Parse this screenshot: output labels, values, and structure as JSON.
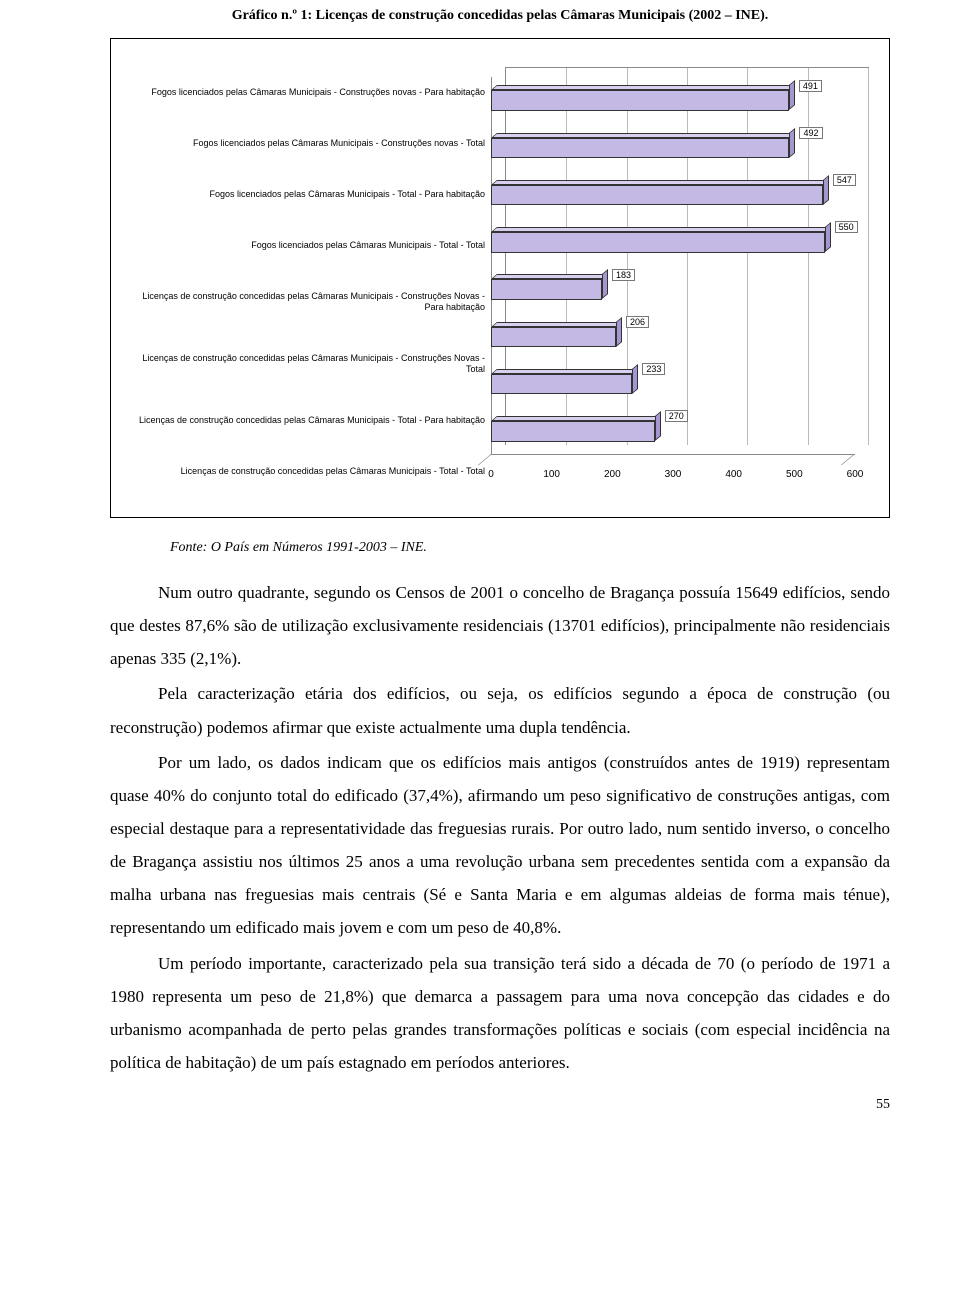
{
  "title": "Gráfico n.º 1: Licenças de construção concedidas pelas Câmaras Municipais (2002 – INE).",
  "chart": {
    "type": "bar-horizontal-3d",
    "x_max": 600,
    "x_ticks": [
      0,
      100,
      200,
      300,
      400,
      500,
      600
    ],
    "bar_fill": "#c4b8e4",
    "bar_top": "#d9d0f0",
    "bar_side": "#a596cf",
    "grid_color": "#bbbbbb",
    "axis_color": "#888888",
    "label_font": "Arial",
    "label_fontsize": 9,
    "tick_fontsize": 10,
    "categories": [
      {
        "label": "Fogos licenciados pelas Câmaras Municipais - Construções novas - Para habitação",
        "value": 491
      },
      {
        "label": "Fogos licenciados pelas Câmaras Municipais - Construções novas - Total",
        "value": 492
      },
      {
        "label": "Fogos licenciados pelas Câmaras Municipais - Total - Para habitação",
        "value": 547
      },
      {
        "label": "Fogos licenciados pelas Câmaras Municipais - Total - Total",
        "value": 550
      },
      {
        "label": "Licenças de construção concedidas pelas Câmaras Municipais - Construções Novas - Para habitação",
        "value": 183
      },
      {
        "label": "Licenças de construção concedidas pelas Câmaras Municipais - Construções Novas - Total",
        "value": 206
      },
      {
        "label": "Licenças de construção concedidas pelas Câmaras Municipais - Total - Para habitação",
        "value": 233
      },
      {
        "label": "Licenças de construção concedidas pelas Câmaras Municipais - Total - Total",
        "value": 270
      }
    ]
  },
  "fonte": "Fonte: O País em Números 1991-2003 – INE.",
  "paragraphs": [
    "Num outro quadrante, segundo os Censos de 2001 o concelho de Bragança possuía 15649 edifícios, sendo que destes 87,6% são de utilização exclusivamente residenciais (13701 edifícios), principalmente não residenciais apenas 335 (2,1%).",
    "Pela caracterização etária dos edifícios, ou seja, os edifícios segundo a época de construção (ou reconstrução) podemos afirmar que existe actualmente uma dupla tendência.",
    "Por um lado, os dados indicam que os edifícios mais antigos (construídos antes de 1919) representam quase 40% do conjunto total do edificado (37,4%), afirmando um peso significativo de construções antigas, com especial destaque para a representatividade das freguesias rurais. Por outro lado, num sentido inverso, o concelho de Bragança assistiu nos últimos 25 anos a uma revolução urbana sem precedentes sentida com a expansão da malha urbana nas freguesias mais centrais (Sé e Santa Maria e em algumas aldeias de forma mais ténue), representando um edificado mais jovem e com um peso de 40,8%.",
    "Um período importante, caracterizado pela sua transição terá sido a década de 70 (o período de 1971 a 1980 representa um peso de 21,8%) que demarca a passagem para uma nova concepção das cidades e do urbanismo acompanhada de perto pelas grandes transformações políticas e sociais (com especial incidência na política de habitação) de um país estagnado em períodos anteriores."
  ],
  "page_number": "55"
}
